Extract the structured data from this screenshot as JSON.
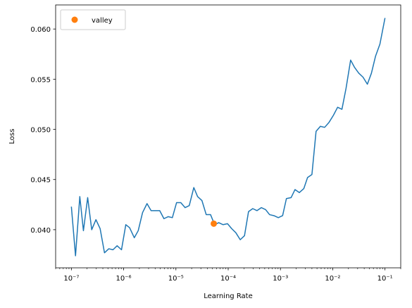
{
  "chart_data": {
    "type": "line",
    "xscale": "log",
    "xlabel": "Learning Rate",
    "ylabel": "Loss",
    "xlim": [
      5e-08,
      0.2
    ],
    "ylim": [
      0.0362,
      0.0624
    ],
    "grid": false,
    "legend": {
      "placement": "top-left",
      "entries": [
        "valley"
      ]
    },
    "x_ticks": [
      1e-07,
      1e-06,
      1e-05,
      0.0001,
      0.001,
      0.01,
      0.1
    ],
    "x_tick_labels": [
      "10⁻⁷",
      "10⁻⁶",
      "10⁻⁵",
      "10⁻⁴",
      "10⁻³",
      "10⁻²",
      "10⁻¹"
    ],
    "y_ticks": [
      0.04,
      0.045,
      0.05,
      0.055,
      0.06
    ],
    "y_tick_labels": [
      "0.040",
      "0.045",
      "0.050",
      "0.055",
      "0.060"
    ],
    "series": [
      {
        "name": "loss",
        "color": "#1f77b4",
        "x": [
          1e-07,
          1.2e-07,
          1.45e-07,
          1.7e-07,
          2.05e-07,
          2.45e-07,
          2.95e-07,
          3.55e-07,
          4.3e-07,
          5.2e-07,
          6.25e-07,
          7.5e-07,
          9.1e-07,
          1.1e-06,
          1.3e-06,
          1.6e-06,
          1.9e-06,
          2.3e-06,
          2.8e-06,
          3.35e-06,
          4.05e-06,
          4.9e-06,
          5.9e-06,
          7.1e-06,
          8.55e-06,
          1.03e-05,
          1.24e-05,
          1.5e-05,
          1.8e-05,
          2.2e-05,
          2.6e-05,
          3.15e-05,
          3.8e-05,
          4.6e-05,
          5.5e-05,
          6.6e-05,
          8e-05,
          9.7e-05,
          0.000117,
          0.00014,
          0.00017,
          0.000205,
          0.000245,
          0.000295,
          0.000355,
          0.00043,
          0.00052,
          0.00062,
          0.00075,
          0.00091,
          0.0011,
          0.0013,
          0.0016,
          0.0019,
          0.0023,
          0.0028,
          0.0033,
          0.004,
          0.0048,
          0.0058,
          0.007,
          0.0085,
          0.0103,
          0.0124,
          0.015,
          0.018,
          0.022,
          0.026,
          0.0315,
          0.038,
          0.046,
          0.055,
          0.066,
          0.08,
          0.1
        ],
        "y": [
          0.0423,
          0.0374,
          0.0433,
          0.0399,
          0.0432,
          0.04,
          0.041,
          0.0401,
          0.0377,
          0.0381,
          0.038,
          0.0384,
          0.038,
          0.0405,
          0.0402,
          0.0392,
          0.0399,
          0.0417,
          0.0426,
          0.0419,
          0.0419,
          0.0419,
          0.0411,
          0.0413,
          0.0412,
          0.0427,
          0.0427,
          0.0422,
          0.0424,
          0.0442,
          0.0433,
          0.0429,
          0.0415,
          0.0415,
          0.0405,
          0.0407,
          0.0405,
          0.0406,
          0.0401,
          0.0397,
          0.039,
          0.0394,
          0.0418,
          0.0421,
          0.0419,
          0.0422,
          0.042,
          0.0415,
          0.0414,
          0.0412,
          0.0414,
          0.0431,
          0.0432,
          0.044,
          0.0437,
          0.0441,
          0.0452,
          0.0455,
          0.0498,
          0.0503,
          0.0502,
          0.0507,
          0.0514,
          0.0522,
          0.052,
          0.0541,
          0.0569,
          0.0562,
          0.0556,
          0.0552,
          0.0545,
          0.0556,
          0.0573,
          0.0585,
          0.0611
        ]
      }
    ],
    "markers": [
      {
        "name": "valley",
        "color": "#ff7f0e",
        "x": 5.3e-05,
        "y": 0.0406
      }
    ]
  }
}
